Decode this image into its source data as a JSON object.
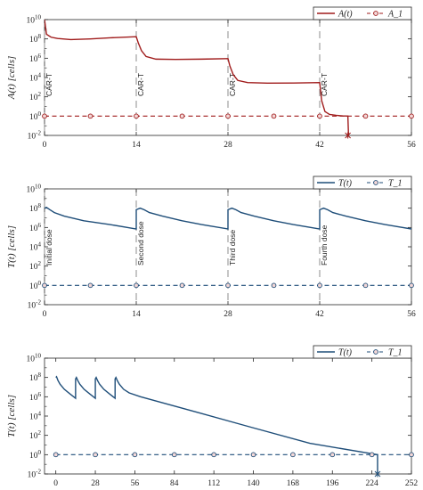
{
  "chart_data": [
    {
      "type": "line",
      "ylabel": "A(t) [cells]",
      "xlabel": "",
      "scale_y": "log",
      "ylim": [
        0.01,
        10000000000.0
      ],
      "xlim": [
        0,
        56
      ],
      "xticks": [
        0,
        14,
        28,
        42,
        56
      ],
      "yticks_exp": [
        -2,
        0,
        2,
        4,
        6,
        8,
        10
      ],
      "grid": false,
      "legend_position": "top-right",
      "colors": {
        "main": "#a01c1c"
      },
      "series": [
        {
          "name": "A(t)",
          "style": "solid",
          "x": [
            0,
            0.3,
            1,
            2,
            4,
            7,
            10,
            14,
            14.3,
            14.8,
            15.5,
            17,
            20,
            24,
            28,
            28.3,
            28.8,
            29.5,
            31,
            34,
            38,
            42,
            42.3,
            42.8,
            43.5,
            44.5,
            45.5,
            46.3,
            46.4
          ],
          "y": [
            10000000000.0,
            300000000.0,
            150000000.0,
            110000000.0,
            85000000.0,
            100000000.0,
            130000000.0,
            170000000.0,
            40000000.0,
            6000000.0,
            1500000.0,
            800000.0,
            750000.0,
            800000.0,
            900000.0,
            150000.0,
            20000.0,
            5000.0,
            3000.0,
            2600.0,
            2700.0,
            3000.0,
            40.0,
            3,
            1.5,
            1.2,
            1.05,
            1.0,
            0.01
          ]
        },
        {
          "name": "A_1",
          "style": "dashed-circle",
          "x": [
            0,
            7,
            14,
            21,
            28,
            35,
            42,
            49,
            56
          ],
          "y": [
            1,
            1,
            1,
            1,
            1,
            1,
            1,
            1,
            1
          ]
        }
      ],
      "events": [
        {
          "x": 0,
          "label": "CAR-T"
        },
        {
          "x": 14,
          "label": "CAR-T"
        },
        {
          "x": 28,
          "label": "CAR-T"
        },
        {
          "x": 42,
          "label": "CAR-T"
        }
      ],
      "end_marker": {
        "x": 46.3,
        "y": 0.01
      }
    },
    {
      "type": "line",
      "ylabel": "T(t) [cells]",
      "xlabel": "",
      "scale_y": "log",
      "ylim": [
        0.01,
        10000000000.0
      ],
      "xlim": [
        0,
        56
      ],
      "xticks": [
        0,
        14,
        28,
        42,
        56
      ],
      "yticks_exp": [
        -2,
        0,
        2,
        4,
        6,
        8,
        10
      ],
      "grid": false,
      "legend_position": "top-right",
      "colors": {
        "main": "#1f4e79"
      },
      "series": [
        {
          "name": "T(t)",
          "style": "solid",
          "x": [
            0,
            0.3,
            0.8,
            1.5,
            3,
            6,
            10,
            14,
            14.001,
            14.6,
            15.2,
            16,
            18,
            21,
            24,
            28,
            28.001,
            28.6,
            29.2,
            30,
            32,
            35,
            38,
            42,
            42.001,
            42.6,
            43.2,
            44,
            46,
            49,
            52,
            56
          ],
          "y": [
            100000000.0,
            120000000.0,
            70000000.0,
            35000000.0,
            15000000.0,
            5000000.0,
            2000000.0,
            700000.0,
            70000000.0,
            100000000.0,
            70000000.0,
            35000000.0,
            15000000.0,
            5000000.0,
            2000000.0,
            700000.0,
            70000000.0,
            100000000.0,
            70000000.0,
            35000000.0,
            15000000.0,
            5000000.0,
            2000000.0,
            700000.0,
            70000000.0,
            100000000.0,
            70000000.0,
            35000000.0,
            15000000.0,
            5000000.0,
            2000000.0,
            700000.0
          ]
        },
        {
          "name": "T_1",
          "style": "dashed-circle",
          "x": [
            0,
            7,
            14,
            21,
            28,
            35,
            42,
            49,
            56
          ],
          "y": [
            1,
            1,
            1,
            1,
            1,
            1,
            1,
            1,
            1
          ]
        }
      ],
      "events": [
        {
          "x": 0,
          "label": "Initial dose"
        },
        {
          "x": 14,
          "label": "Second dose"
        },
        {
          "x": 28,
          "label": "Third dose"
        },
        {
          "x": 42,
          "label": "Fourth dose"
        }
      ]
    },
    {
      "type": "line",
      "ylabel": "T(t) [cells]",
      "xlabel": "t [days]",
      "scale_y": "log",
      "ylim": [
        0.01,
        10000000000.0
      ],
      "xlim": [
        -8,
        252
      ],
      "xticks": [
        0,
        28,
        56,
        84,
        112,
        140,
        168,
        196,
        224,
        252
      ],
      "yticks_exp": [
        -2,
        0,
        2,
        4,
        6,
        8,
        10
      ],
      "grid": false,
      "legend_position": "top-right",
      "colors": {
        "main": "#1f4e79"
      },
      "series": [
        {
          "name": "T(t)",
          "style": "solid",
          "x": [
            0,
            0.5,
            1.5,
            3,
            6,
            10,
            14,
            14.01,
            14.6,
            15.5,
            17,
            20,
            24,
            28,
            28.01,
            28.6,
            29.5,
            31,
            34,
            38,
            42,
            42.01,
            42.6,
            43.5,
            45,
            48,
            52,
            60,
            100,
            140,
            180,
            228,
            228.01
          ],
          "y": [
            100000000.0,
            120000000.0,
            50000000.0,
            20000000.0,
            6000000.0,
            2000000.0,
            700000.0,
            70000000.0,
            100000000.0,
            50000000.0,
            20000000.0,
            6000000.0,
            2000000.0,
            700000.0,
            70000000.0,
            100000000.0,
            50000000.0,
            20000000.0,
            6000000.0,
            2000000.0,
            700000.0,
            70000000.0,
            100000000.0,
            50000000.0,
            20000000.0,
            6000000.0,
            2500000.0,
            1000000.0,
            25000.0,
            600.0,
            15.0,
            1.0,
            0.01
          ]
        },
        {
          "name": "T_1",
          "style": "dashed-circle",
          "x": [
            0,
            28,
            56,
            84,
            112,
            140,
            168,
            196,
            224,
            252
          ],
          "y": [
            1,
            1,
            1,
            1,
            1,
            1,
            1,
            1,
            1,
            1
          ]
        }
      ],
      "events": [],
      "end_marker": {
        "x": 228,
        "y": 0.01
      }
    }
  ]
}
